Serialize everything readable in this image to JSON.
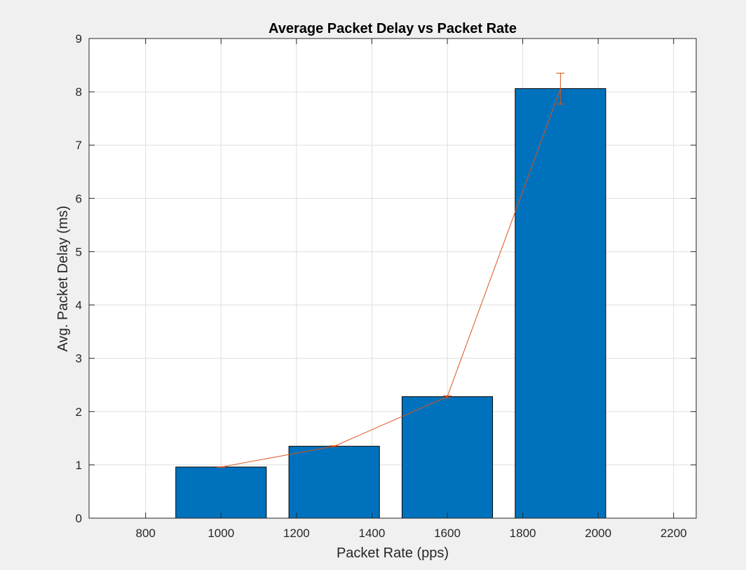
{
  "chart_data": {
    "type": "bar",
    "title": "Average Packet Delay vs Packet Rate",
    "xlabel": "Packet Rate (pps)",
    "ylabel": "Avg. Packet Delay (ms)",
    "xlim": [
      650,
      2260
    ],
    "ylim": [
      0,
      9
    ],
    "x_ticks": [
      800,
      1000,
      1200,
      1400,
      1600,
      1800,
      2000,
      2200
    ],
    "y_ticks": [
      0,
      1,
      2,
      3,
      4,
      5,
      6,
      7,
      8,
      9
    ],
    "bar_width": 240,
    "grid": true,
    "x": [
      1000,
      1300,
      1600,
      1900
    ],
    "series": [
      {
        "type": "bar",
        "values": [
          0.96,
          1.35,
          2.28,
          8.06
        ]
      },
      {
        "type": "line_errorbar",
        "values": [
          0.96,
          1.35,
          2.28,
          8.06
        ],
        "error": [
          0.005,
          0.01,
          0.02,
          0.29
        ]
      }
    ],
    "colors": {
      "bar": "#0072bd",
      "line": "#d95319",
      "grid": "#dfdfdf",
      "background": "#f0f0f0",
      "plot_area": "#ffffff"
    }
  }
}
